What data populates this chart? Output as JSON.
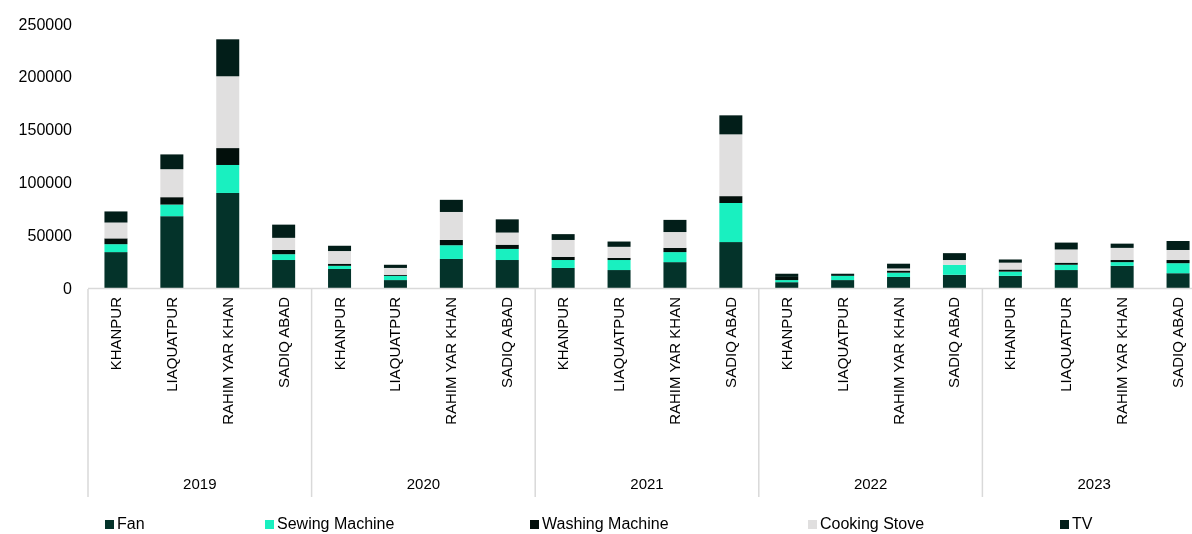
{
  "chart_data": {
    "type": "bar",
    "stacked": true,
    "categories": [
      "KHANPUR",
      "LIAQUATPUR",
      "RAHIM YAR KHAN",
      "SADIQ ABAD",
      "KHANPUR",
      "LIAQUATPUR",
      "RAHIM YAR KHAN",
      "SADIQ ABAD",
      "KHANPUR",
      "LIAQUATPUR",
      "RAHIM YAR KHAN",
      "SADIQ ABAD",
      "KHANPUR",
      "LIAQUATPUR",
      "RAHIM YAR KHAN",
      "SADIQ ABAD",
      "KHANPUR",
      "LIAQUATPUR",
      "RAHIM YAR KHAN",
      "SADIQ ABAD"
    ],
    "annotations": [
      "2019",
      "2020",
      "2021",
      "2022",
      "2023"
    ],
    "series": [
      {
        "name": "Fan",
        "color": "#04332a",
        "values": [
          34000,
          68000,
          90000,
          26500,
          18000,
          7500,
          27500,
          26500,
          19000,
          17000,
          24500,
          43500,
          5500,
          7500,
          10500,
          12500,
          11500,
          17000,
          21000,
          14000
        ]
      },
      {
        "name": "Sewing Machine",
        "color": "#19f0c0",
        "values": [
          7500,
          11000,
          26500,
          5500,
          3000,
          4000,
          13000,
          10500,
          7500,
          9500,
          9500,
          37000,
          2000,
          4000,
          4000,
          9500,
          4000,
          5000,
          3500,
          9500
        ]
      },
      {
        "name": "Washing Machine",
        "color": "#020f0b",
        "values": [
          5500,
          7000,
          16000,
          4000,
          2000,
          1000,
          5000,
          4000,
          3000,
          2000,
          4000,
          6500,
          3000,
          0,
          2000,
          0,
          2000,
          2000,
          2000,
          3000
        ]
      },
      {
        "name": "Cooking Stove",
        "color": "#e0dfdf",
        "values": [
          15000,
          26500,
          68000,
          11500,
          12000,
          6500,
          26500,
          11500,
          16000,
          10500,
          15000,
          58500,
          0,
          0,
          2000,
          4500,
          6500,
          12500,
          11500,
          9500
        ]
      },
      {
        "name": "TV",
        "color": "#021e19",
        "values": [
          10500,
          14000,
          35000,
          12500,
          5000,
          3000,
          11500,
          12500,
          5500,
          5000,
          11500,
          18000,
          3000,
          2000,
          4500,
          6500,
          3000,
          6500,
          4000,
          8500
        ]
      }
    ],
    "ylim": [
      0,
      250000
    ],
    "yticks": [
      0,
      50000,
      100000,
      150000,
      200000,
      250000
    ],
    "legend": "bottom"
  }
}
